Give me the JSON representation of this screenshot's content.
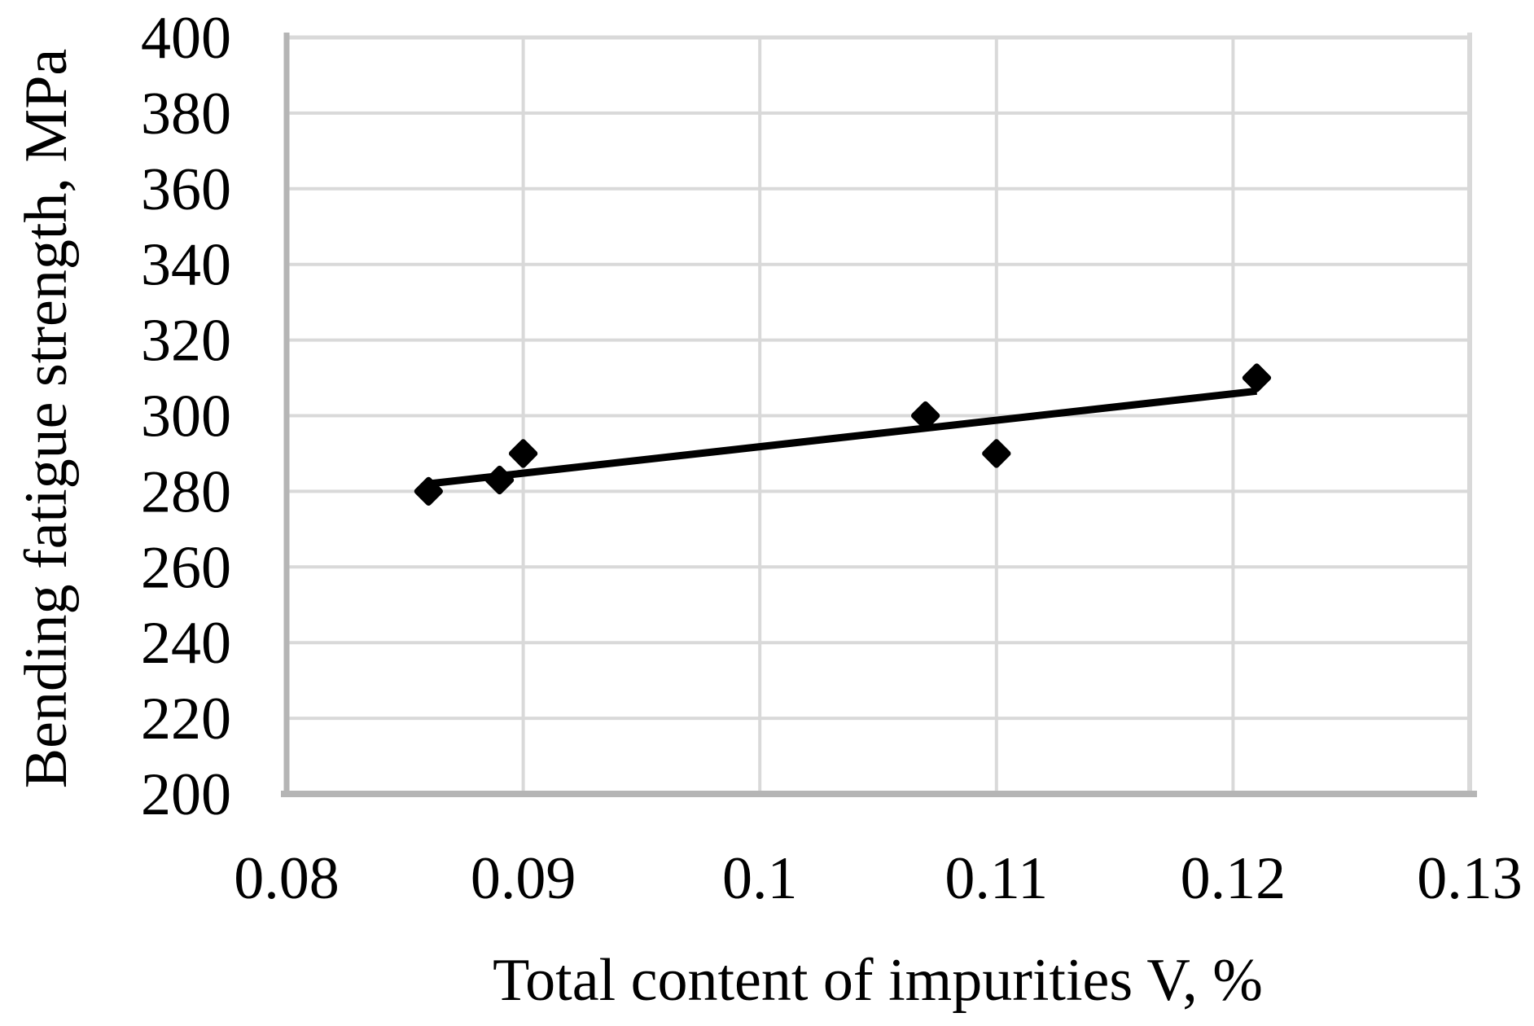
{
  "chart_data": {
    "type": "scatter",
    "title": "",
    "xlabel": "Total content of impurities V, %",
    "ylabel": "Bending fatigue strength, MPa",
    "points": [
      {
        "x": 0.086,
        "y": 280
      },
      {
        "x": 0.089,
        "y": 283
      },
      {
        "x": 0.09,
        "y": 290
      },
      {
        "x": 0.107,
        "y": 300
      },
      {
        "x": 0.11,
        "y": 290
      },
      {
        "x": 0.121,
        "y": 310
      }
    ],
    "trendline": {
      "x1": 0.086,
      "y1": 282,
      "x2": 0.121,
      "y2": 306.5
    },
    "xlim": [
      0.08,
      0.13
    ],
    "ylim": [
      200,
      400
    ],
    "x_ticks": [
      {
        "value": 0.08,
        "label": "0.08"
      },
      {
        "value": 0.09,
        "label": "0.09"
      },
      {
        "value": 0.1,
        "label": "0.1"
      },
      {
        "value": 0.11,
        "label": "0.11"
      },
      {
        "value": 0.12,
        "label": "0.12"
      },
      {
        "value": 0.13,
        "label": "0.13"
      }
    ],
    "y_ticks": [
      {
        "value": 200,
        "label": "200"
      },
      {
        "value": 220,
        "label": "220"
      },
      {
        "value": 240,
        "label": "240"
      },
      {
        "value": 260,
        "label": "260"
      },
      {
        "value": 280,
        "label": "280"
      },
      {
        "value": 300,
        "label": "300"
      },
      {
        "value": 320,
        "label": "320"
      },
      {
        "value": 340,
        "label": "340"
      },
      {
        "value": 360,
        "label": "360"
      },
      {
        "value": 380,
        "label": "380"
      },
      {
        "value": 400,
        "label": "400"
      }
    ],
    "grid": true,
    "legend": "none",
    "marker_shape": "diamond",
    "colors": {
      "marker": "#000000",
      "trendline": "#000000",
      "gridline": "#d9d9d9",
      "axis_line_light": "#d9d9d9",
      "axis_line_dark": "#b5b5b5",
      "text": "#000000",
      "background": "#ffffff"
    }
  }
}
